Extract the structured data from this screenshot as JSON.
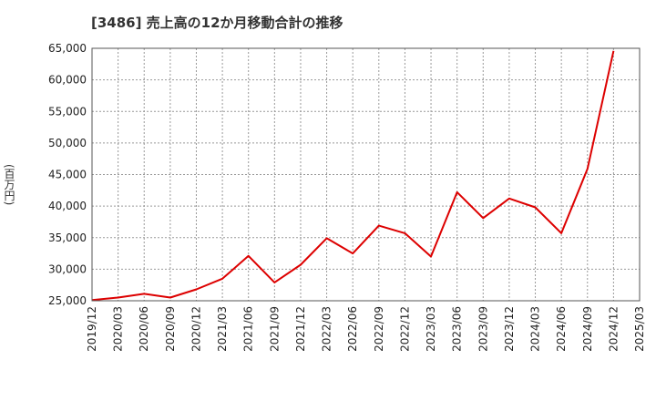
{
  "chart_data": {
    "type": "line",
    "title": "[3486]  売上高の12か月移動合計の推移",
    "ylabel": "(百万円)",
    "xlabel": "",
    "ylim": [
      25000,
      65000
    ],
    "y_ticks": [
      "25,000",
      "30,000",
      "35,000",
      "40,000",
      "45,000",
      "50,000",
      "55,000",
      "60,000",
      "65,000"
    ],
    "x_ticks": [
      "2019/12",
      "2020/03",
      "2020/06",
      "2020/09",
      "2020/12",
      "2021/03",
      "2021/06",
      "2021/09",
      "2021/12",
      "2022/03",
      "2022/06",
      "2022/09",
      "2022/12",
      "2023/03",
      "2023/06",
      "2023/09",
      "2023/12",
      "2024/03",
      "2024/06",
      "2024/09",
      "2024/12",
      "2025/03"
    ],
    "grid": true,
    "line_color": "#dd0000",
    "series": [
      {
        "x": [
          "2019/12",
          "2020/03",
          "2020/06",
          "2020/09",
          "2020/12",
          "2021/03",
          "2021/06",
          "2021/09",
          "2021/12",
          "2022/03",
          "2022/06",
          "2022/09",
          "2022/12",
          "2023/03",
          "2023/06",
          "2023/09",
          "2023/12",
          "2024/03",
          "2024/06",
          "2024/09",
          "2024/12"
        ],
        "values": [
          25100,
          25500,
          26100,
          25500,
          26800,
          28500,
          32100,
          27900,
          30700,
          34900,
          32500,
          36900,
          35700,
          32000,
          42200,
          38100,
          41200,
          39800,
          35700,
          45900,
          64600
        ]
      }
    ]
  }
}
